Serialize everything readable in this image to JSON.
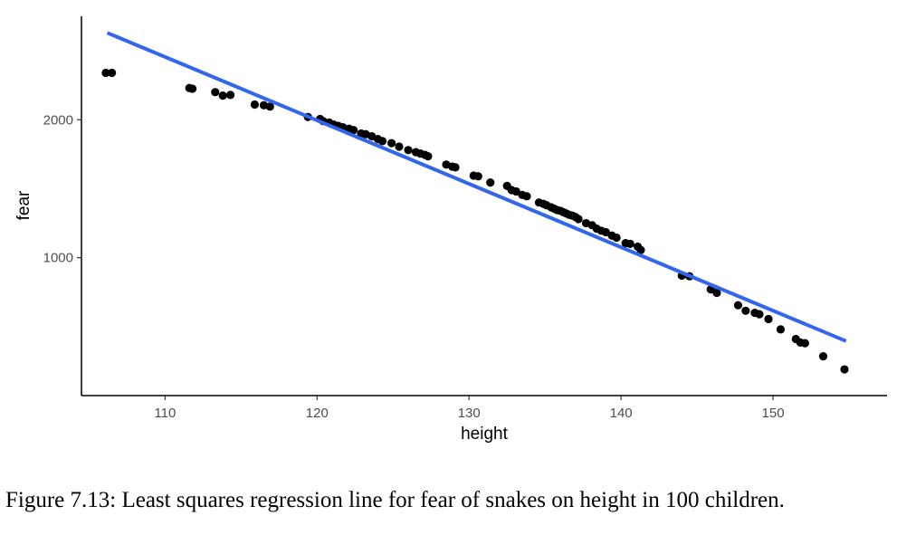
{
  "caption": "Figure 7.13: Least squares regression line for fear of snakes on height in 100 children.",
  "chart_data": {
    "type": "scatter",
    "title": "",
    "xlabel": "height",
    "ylabel": "fear",
    "xlim": [
      104.5,
      157.5
    ],
    "ylim": [
      0,
      2750
    ],
    "x_ticks": [
      110,
      120,
      130,
      140,
      150
    ],
    "y_ticks": [
      1000,
      2000
    ],
    "grid": false,
    "legend": "none",
    "point_color": "#000000",
    "line_color": "#3366ee",
    "regression_line": {
      "x": [
        106.2,
        154.8
      ],
      "y": [
        2630,
        395
      ]
    },
    "points": [
      [
        106.1,
        2340
      ],
      [
        106.5,
        2340
      ],
      [
        111.6,
        2230
      ],
      [
        111.8,
        2225
      ],
      [
        113.3,
        2200
      ],
      [
        113.8,
        2175
      ],
      [
        114.3,
        2180
      ],
      [
        115.9,
        2110
      ],
      [
        116.5,
        2105
      ],
      [
        116.9,
        2095
      ],
      [
        119.4,
        2020
      ],
      [
        120.2,
        2005
      ],
      [
        120.4,
        1990
      ],
      [
        120.8,
        1980
      ],
      [
        121.1,
        1965
      ],
      [
        121.4,
        1955
      ],
      [
        121.7,
        1945
      ],
      [
        122.1,
        1935
      ],
      [
        122.4,
        1925
      ],
      [
        122.9,
        1900
      ],
      [
        123.2,
        1895
      ],
      [
        123.6,
        1880
      ],
      [
        124.0,
        1860
      ],
      [
        124.3,
        1845
      ],
      [
        124.9,
        1830
      ],
      [
        125.4,
        1805
      ],
      [
        126.0,
        1780
      ],
      [
        126.5,
        1765
      ],
      [
        126.8,
        1755
      ],
      [
        127.1,
        1745
      ],
      [
        127.3,
        1735
      ],
      [
        128.5,
        1675
      ],
      [
        128.9,
        1660
      ],
      [
        129.1,
        1655
      ],
      [
        130.3,
        1595
      ],
      [
        130.6,
        1590
      ],
      [
        131.4,
        1545
      ],
      [
        132.5,
        1520
      ],
      [
        132.8,
        1490
      ],
      [
        133.1,
        1480
      ],
      [
        133.5,
        1455
      ],
      [
        133.8,
        1445
      ],
      [
        134.6,
        1400
      ],
      [
        134.9,
        1390
      ],
      [
        135.1,
        1380
      ],
      [
        135.4,
        1365
      ],
      [
        135.6,
        1355
      ],
      [
        135.8,
        1345
      ],
      [
        136.0,
        1340
      ],
      [
        136.2,
        1330
      ],
      [
        136.4,
        1320
      ],
      [
        136.6,
        1310
      ],
      [
        136.8,
        1305
      ],
      [
        137.0,
        1295
      ],
      [
        137.2,
        1280
      ],
      [
        137.7,
        1250
      ],
      [
        138.1,
        1235
      ],
      [
        138.4,
        1210
      ],
      [
        138.7,
        1195
      ],
      [
        139.0,
        1185
      ],
      [
        139.4,
        1160
      ],
      [
        139.7,
        1145
      ],
      [
        140.3,
        1105
      ],
      [
        140.6,
        1100
      ],
      [
        141.1,
        1080
      ],
      [
        141.3,
        1055
      ],
      [
        144.0,
        870
      ],
      [
        144.5,
        865
      ],
      [
        145.9,
        770
      ],
      [
        146.3,
        745
      ],
      [
        147.7,
        655
      ],
      [
        148.2,
        615
      ],
      [
        148.8,
        600
      ],
      [
        149.1,
        590
      ],
      [
        149.7,
        555
      ],
      [
        150.5,
        480
      ],
      [
        151.5,
        410
      ],
      [
        151.8,
        385
      ],
      [
        152.1,
        380
      ],
      [
        153.3,
        285
      ],
      [
        154.7,
        190
      ]
    ]
  }
}
